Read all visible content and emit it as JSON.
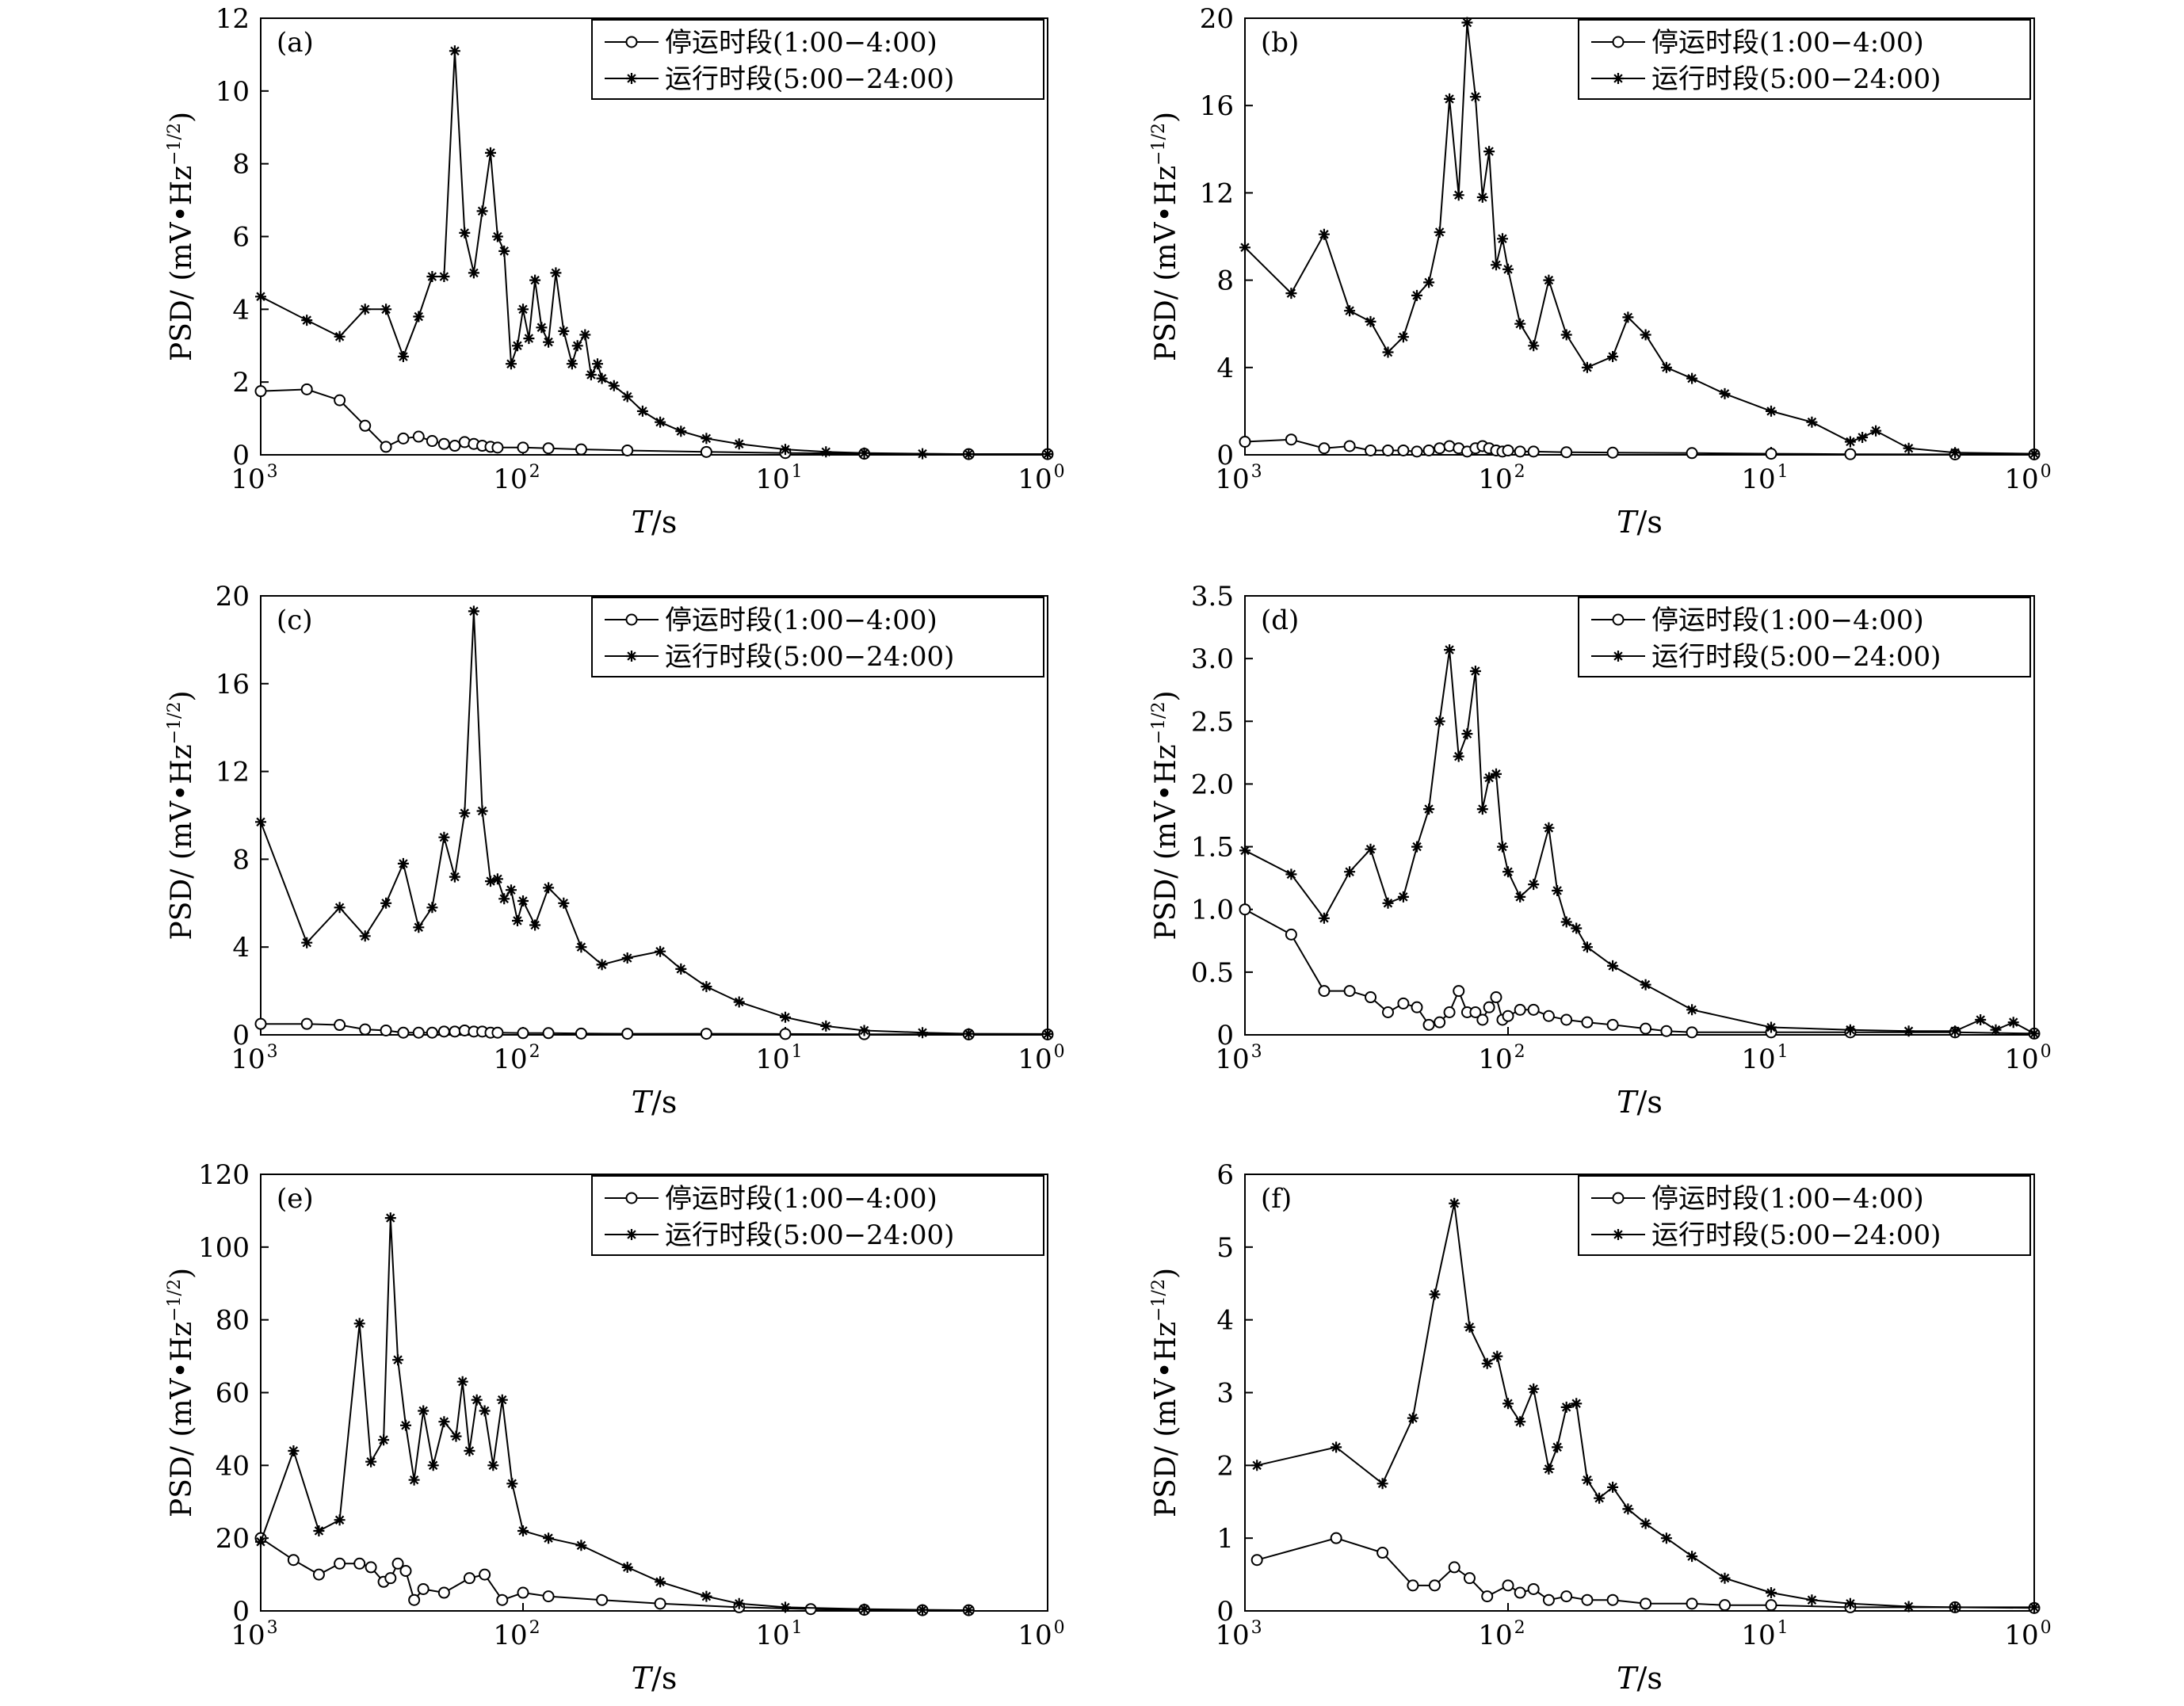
{
  "figure": {
    "x_axis_label_italic": "T",
    "x_axis_label_rest": "/s",
    "y_axis_label_main": "PSD/ (mV•Hz",
    "y_axis_label_sup": "−1/2",
    "y_axis_label_close": ")",
    "legend_labels": [
      "停运时段(1:00−4:00)",
      "运行时段(5:00−24:00)"
    ],
    "x_tick_labels": [
      {
        "base": "10",
        "exp": "3"
      },
      {
        "base": "10",
        "exp": "2"
      },
      {
        "base": "10",
        "exp": "1"
      },
      {
        "base": "10",
        "exp": "0"
      }
    ]
  },
  "chart_data": [
    {
      "panel": "(a)",
      "type": "line",
      "xlabel": "T/s",
      "ylabel": "PSD/(mV•Hz−1/2)",
      "x_scale": "log",
      "x_reversed": true,
      "xlim": [
        1000,
        1
      ],
      "ylim": [
        0,
        12
      ],
      "y_ticks": [
        "0",
        "2",
        "4",
        "6",
        "8",
        "10",
        "12"
      ],
      "legend_position": "top-right",
      "series": [
        {
          "name": "停运时段(1:00−4:00)",
          "marker": "circle",
          "x": [
            1000,
            667,
            500,
            400,
            333,
            286,
            250,
            222,
            200,
            182,
            167,
            154,
            143,
            133,
            125,
            100,
            80,
            60,
            40,
            20,
            10,
            5,
            2,
            1
          ],
          "y": [
            1.75,
            1.8,
            1.5,
            0.8,
            0.22,
            0.45,
            0.5,
            0.38,
            0.3,
            0.25,
            0.35,
            0.3,
            0.25,
            0.22,
            0.2,
            0.2,
            0.18,
            0.15,
            0.12,
            0.08,
            0.05,
            0.03,
            0.02,
            0.02
          ]
        },
        {
          "name": "运行时段(5:00−24:00)",
          "marker": "star",
          "x": [
            1000,
            667,
            500,
            400,
            333,
            286,
            250,
            222,
            200,
            182,
            167,
            154,
            143,
            133,
            125,
            118,
            111,
            105,
            100,
            95,
            90,
            85,
            80,
            75,
            70,
            65,
            62,
            58,
            55,
            52,
            50,
            45,
            40,
            35,
            30,
            25,
            20,
            15,
            10,
            7,
            5,
            3,
            2,
            1
          ],
          "y": [
            4.35,
            3.7,
            3.25,
            4.0,
            4.0,
            2.7,
            3.8,
            4.9,
            4.9,
            11.1,
            6.1,
            5.0,
            6.7,
            8.3,
            6.0,
            5.6,
            2.5,
            3.0,
            4.0,
            3.2,
            4.8,
            3.5,
            3.1,
            5.0,
            3.4,
            2.5,
            3.0,
            3.3,
            2.2,
            2.5,
            2.1,
            1.9,
            1.6,
            1.2,
            0.9,
            0.65,
            0.45,
            0.3,
            0.15,
            0.08,
            0.05,
            0.03,
            0.02,
            0.02
          ]
        }
      ]
    },
    {
      "panel": "(b)",
      "type": "line",
      "xlabel": "T/s",
      "ylabel": "PSD/(mV•Hz−1/2)",
      "x_scale": "log",
      "x_reversed": true,
      "xlim": [
        1000,
        1
      ],
      "ylim": [
        0,
        20
      ],
      "y_ticks": [
        "0",
        "4",
        "8",
        "12",
        "16",
        "20"
      ],
      "legend_position": "top-right",
      "series": [
        {
          "name": "停运时段(1:00−4:00)",
          "marker": "circle",
          "x": [
            1000,
            667,
            500,
            400,
            333,
            286,
            250,
            222,
            200,
            182,
            167,
            154,
            143,
            133,
            125,
            118,
            111,
            105,
            100,
            90,
            80,
            60,
            40,
            20,
            10,
            5,
            2,
            1
          ],
          "y": [
            0.6,
            0.7,
            0.3,
            0.4,
            0.2,
            0.2,
            0.2,
            0.15,
            0.2,
            0.3,
            0.4,
            0.3,
            0.15,
            0.3,
            0.4,
            0.3,
            0.2,
            0.15,
            0.2,
            0.15,
            0.15,
            0.12,
            0.1,
            0.08,
            0.05,
            0.03,
            0.02,
            0.02
          ]
        },
        {
          "name": "运行时段(5:00−24:00)",
          "marker": "star",
          "x": [
            1000,
            667,
            500,
            400,
            333,
            286,
            250,
            222,
            200,
            182,
            167,
            154,
            143,
            133,
            125,
            118,
            111,
            105,
            100,
            90,
            80,
            70,
            60,
            50,
            40,
            35,
            30,
            25,
            20,
            15,
            10,
            7,
            5,
            4.5,
            4,
            3,
            2,
            1
          ],
          "y": [
            9.5,
            7.4,
            10.1,
            6.6,
            6.1,
            4.7,
            5.4,
            7.3,
            7.9,
            10.2,
            16.3,
            11.9,
            19.8,
            16.4,
            11.8,
            13.9,
            8.7,
            9.9,
            8.5,
            6.0,
            5.0,
            8.0,
            5.5,
            4.0,
            4.5,
            6.3,
            5.5,
            4.0,
            3.5,
            2.8,
            2.0,
            1.5,
            0.6,
            0.8,
            1.1,
            0.3,
            0.1,
            0.05
          ]
        }
      ]
    },
    {
      "panel": "(c)",
      "type": "line",
      "xlabel": "T/s",
      "ylabel": "PSD/(mV•Hz−1/2)",
      "x_scale": "log",
      "x_reversed": true,
      "xlim": [
        1000,
        1
      ],
      "ylim": [
        0,
        20
      ],
      "y_ticks": [
        "0",
        "4",
        "8",
        "12",
        "16",
        "20"
      ],
      "legend_position": "top-right",
      "series": [
        {
          "name": "停运时段(1:00−4:00)",
          "marker": "circle",
          "x": [
            1000,
            667,
            500,
            400,
            333,
            286,
            250,
            222,
            200,
            182,
            167,
            154,
            143,
            133,
            125,
            100,
            80,
            60,
            40,
            20,
            10,
            5,
            2,
            1
          ],
          "y": [
            0.5,
            0.5,
            0.45,
            0.25,
            0.2,
            0.1,
            0.1,
            0.1,
            0.15,
            0.15,
            0.2,
            0.15,
            0.15,
            0.1,
            0.1,
            0.08,
            0.08,
            0.06,
            0.05,
            0.05,
            0.04,
            0.03,
            0.02,
            0.02
          ]
        },
        {
          "name": "运行时段(5:00−24:00)",
          "marker": "star",
          "x": [
            1000,
            667,
            500,
            400,
            333,
            286,
            250,
            222,
            200,
            182,
            167,
            154,
            143,
            133,
            125,
            118,
            111,
            105,
            100,
            90,
            80,
            70,
            60,
            50,
            40,
            30,
            25,
            20,
            15,
            10,
            7,
            5,
            3,
            2,
            1
          ],
          "y": [
            9.7,
            4.2,
            5.8,
            4.5,
            6.0,
            7.8,
            4.9,
            5.8,
            9.0,
            7.2,
            10.1,
            19.3,
            10.2,
            7.0,
            7.1,
            6.2,
            6.6,
            5.2,
            6.1,
            5.0,
            6.7,
            6.0,
            4.0,
            3.2,
            3.5,
            3.8,
            3.0,
            2.2,
            1.5,
            0.8,
            0.4,
            0.2,
            0.1,
            0.05,
            0.04
          ]
        }
      ]
    },
    {
      "panel": "(d)",
      "type": "line",
      "xlabel": "T/s",
      "ylabel": "PSD/(mV•Hz−1/2)",
      "x_scale": "log",
      "x_reversed": true,
      "xlim": [
        1000,
        1
      ],
      "ylim": [
        0,
        3.5
      ],
      "y_ticks": [
        "0",
        "0.5",
        "1.0",
        "1.5",
        "2.0",
        "2.5",
        "3.0",
        "3.5"
      ],
      "legend_position": "top-right",
      "series": [
        {
          "name": "停运时段(1:00−4:00)",
          "marker": "circle",
          "x": [
            1000,
            667,
            500,
            400,
            333,
            286,
            250,
            222,
            200,
            182,
            167,
            154,
            143,
            133,
            125,
            118,
            111,
            105,
            100,
            90,
            80,
            70,
            60,
            50,
            40,
            30,
            25,
            20,
            10,
            5,
            2,
            1
          ],
          "y": [
            1.0,
            0.8,
            0.35,
            0.35,
            0.3,
            0.18,
            0.25,
            0.22,
            0.08,
            0.1,
            0.18,
            0.35,
            0.18,
            0.18,
            0.12,
            0.22,
            0.3,
            0.12,
            0.15,
            0.2,
            0.2,
            0.15,
            0.12,
            0.1,
            0.08,
            0.05,
            0.03,
            0.02,
            0.02,
            0.02,
            0.02,
            0.01
          ]
        },
        {
          "name": "运行时段(5:00−24:00)",
          "marker": "star",
          "x": [
            1000,
            667,
            500,
            400,
            333,
            286,
            250,
            222,
            200,
            182,
            167,
            154,
            143,
            133,
            125,
            118,
            111,
            105,
            100,
            90,
            80,
            70,
            65,
            60,
            55,
            50,
            40,
            30,
            20,
            10,
            5,
            3,
            2,
            1.6,
            1.4,
            1.2,
            1
          ],
          "y": [
            1.47,
            1.28,
            0.93,
            1.3,
            1.48,
            1.05,
            1.1,
            1.5,
            1.8,
            2.5,
            3.07,
            2.22,
            2.4,
            2.9,
            1.8,
            2.05,
            2.08,
            1.5,
            1.3,
            1.1,
            1.2,
            1.65,
            1.15,
            0.9,
            0.85,
            0.7,
            0.55,
            0.4,
            0.2,
            0.06,
            0.04,
            0.03,
            0.03,
            0.12,
            0.04,
            0.1,
            0.01
          ]
        }
      ]
    },
    {
      "panel": "(e)",
      "type": "line",
      "xlabel": "T/s",
      "ylabel": "PSD/(mV•Hz−1/2)",
      "x_scale": "log",
      "x_reversed": true,
      "xlim": [
        1000,
        1
      ],
      "ylim": [
        0,
        120
      ],
      "y_ticks": [
        "0",
        "20",
        "40",
        "60",
        "80",
        "100",
        "120"
      ],
      "legend_position": "top-right",
      "series": [
        {
          "name": "停运时段(1:00−4:00)",
          "marker": "circle",
          "x": [
            1000,
            750,
            600,
            500,
            420,
            380,
            340,
            320,
            300,
            280,
            260,
            240,
            200,
            160,
            140,
            120,
            100,
            80,
            50,
            30,
            15,
            8,
            5,
            3,
            2
          ],
          "y": [
            20,
            14,
            10,
            13,
            13,
            12,
            8,
            9,
            13,
            11,
            3,
            6,
            5,
            9,
            10,
            3,
            5,
            4,
            3,
            2,
            1,
            0.5,
            0.3,
            0.2,
            0.2
          ]
        },
        {
          "name": "运行时段(5:00−24:00)",
          "marker": "star",
          "x": [
            1000,
            750,
            600,
            500,
            420,
            380,
            340,
            320,
            300,
            280,
            260,
            240,
            220,
            200,
            180,
            170,
            160,
            150,
            140,
            130,
            120,
            110,
            100,
            80,
            60,
            40,
            30,
            20,
            15,
            10,
            5,
            3,
            2
          ],
          "y": [
            19,
            44,
            22,
            25,
            79,
            41,
            47,
            108,
            69,
            51,
            36,
            55,
            40,
            52,
            48,
            63,
            44,
            58,
            55,
            40,
            58,
            35,
            22,
            20,
            18,
            12,
            8,
            4,
            2,
            1,
            0.5,
            0.3,
            0.2
          ]
        }
      ]
    },
    {
      "panel": "(f)",
      "type": "line",
      "xlabel": "T/s",
      "ylabel": "PSD/(mV•Hz−1/2)",
      "x_scale": "log",
      "x_reversed": true,
      "xlim": [
        1000,
        1
      ],
      "ylim": [
        0,
        6
      ],
      "y_ticks": [
        "0",
        "1",
        "2",
        "3",
        "4",
        "5",
        "6"
      ],
      "legend_position": "top-right",
      "series": [
        {
          "name": "停运时段(1:00−4:00)",
          "marker": "circle",
          "x": [
            900,
            450,
            300,
            230,
            190,
            160,
            140,
            120,
            100,
            90,
            80,
            70,
            60,
            50,
            40,
            30,
            20,
            15,
            10,
            5,
            2,
            1
          ],
          "y": [
            0.7,
            1.0,
            0.8,
            0.35,
            0.35,
            0.6,
            0.45,
            0.2,
            0.35,
            0.25,
            0.3,
            0.15,
            0.2,
            0.15,
            0.15,
            0.1,
            0.1,
            0.08,
            0.08,
            0.05,
            0.05,
            0.04
          ]
        },
        {
          "name": "运行时段(5:00−24:00)",
          "marker": "star",
          "x": [
            900,
            450,
            300,
            230,
            190,
            160,
            140,
            120,
            110,
            100,
            90,
            80,
            70,
            65,
            60,
            55,
            50,
            45,
            40,
            35,
            30,
            25,
            20,
            15,
            10,
            7,
            5,
            3,
            2,
            1
          ],
          "y": [
            2.0,
            2.25,
            1.75,
            2.65,
            4.35,
            5.6,
            3.9,
            3.4,
            3.5,
            2.85,
            2.6,
            3.05,
            1.95,
            2.25,
            2.8,
            2.85,
            1.8,
            1.55,
            1.7,
            1.4,
            1.2,
            1.0,
            0.75,
            0.45,
            0.25,
            0.15,
            0.1,
            0.06,
            0.05,
            0.05
          ]
        }
      ]
    }
  ]
}
